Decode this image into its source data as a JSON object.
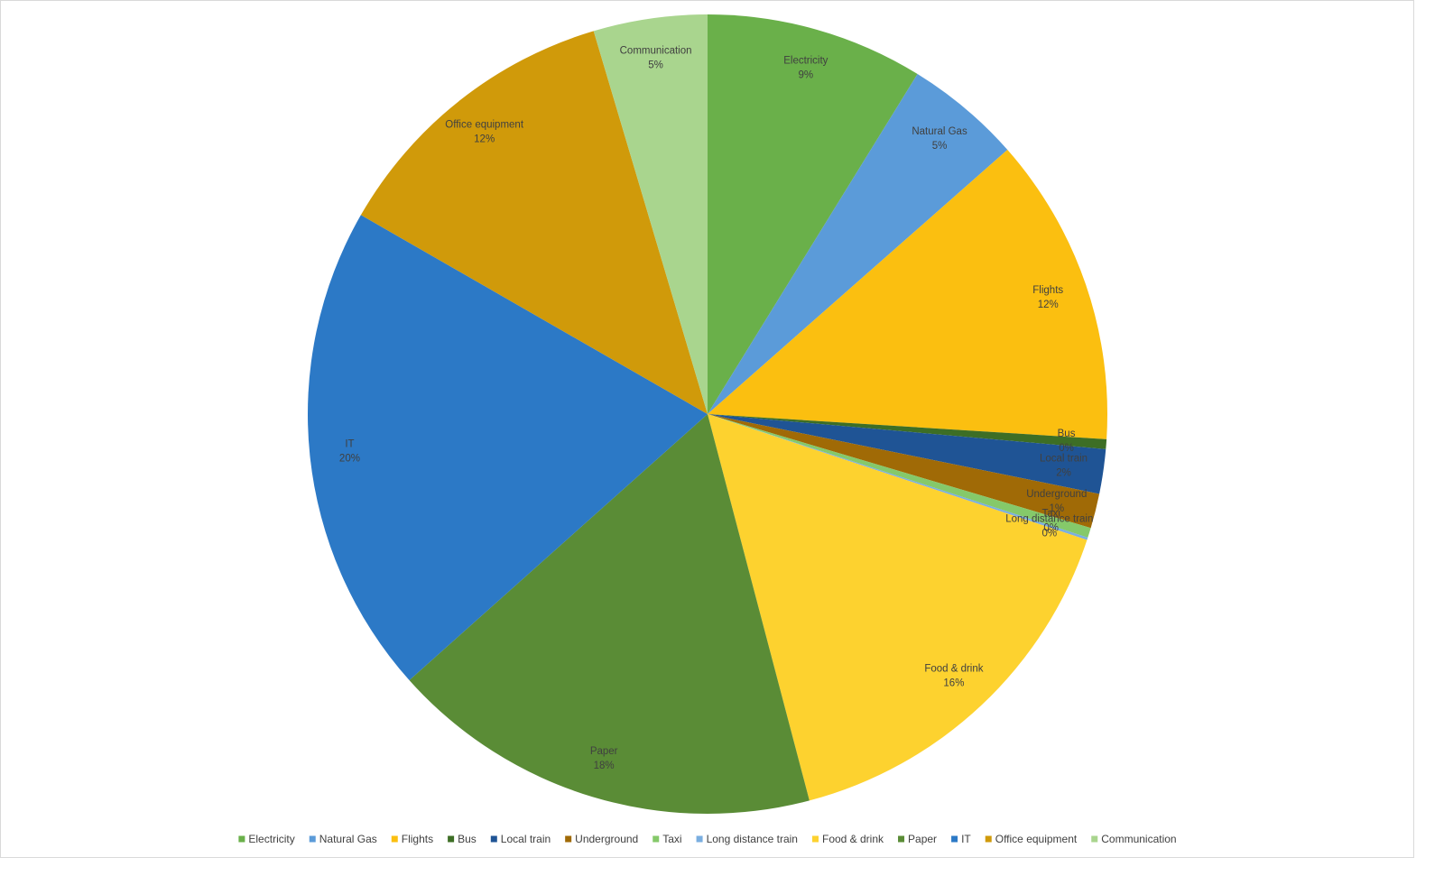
{
  "chart_data": {
    "type": "pie",
    "categories": [
      "Electricity",
      "Natural Gas",
      "Flights",
      "Bus",
      "Local train",
      "Underground",
      "Taxi",
      "Long distance train",
      "Food & drink",
      "Paper",
      "IT",
      "Office equipment",
      "Communication"
    ],
    "values": [
      8.8,
      4.7,
      12.5,
      0.4,
      1.8,
      1.4,
      0.4,
      0.1,
      15.8,
      17.5,
      19.9,
      12.1,
      4.6
    ],
    "value_labels": [
      "9%",
      "5%",
      "12%",
      "0%",
      "2%",
      "1%",
      "0%",
      "0%",
      "16%",
      "18%",
      "20%",
      "12%",
      "5%"
    ],
    "colors": [
      "#6ab04a",
      "#5b9bd9",
      "#fbbf10",
      "#3d6e25",
      "#1f5495",
      "#a06a06",
      "#85c96a",
      "#7aaee0",
      "#fdd22f",
      "#5a8c36",
      "#2c79c6",
      "#d09a0a",
      "#a9d58e"
    ],
    "legend": "bottom"
  }
}
